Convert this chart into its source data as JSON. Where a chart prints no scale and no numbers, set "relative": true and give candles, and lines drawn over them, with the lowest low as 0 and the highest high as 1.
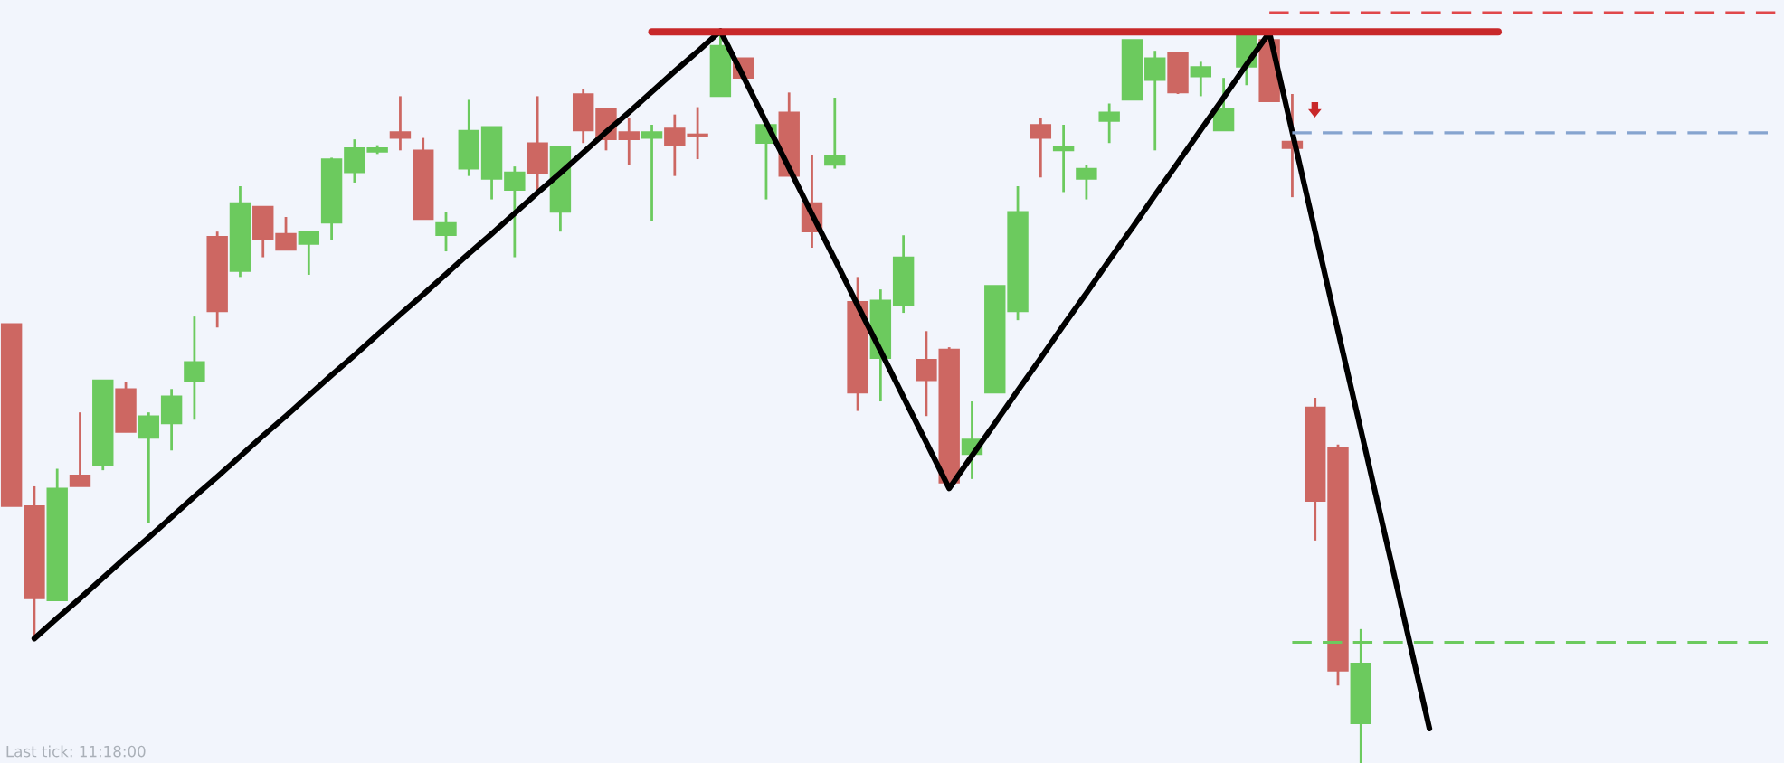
{
  "chart_data": {
    "type": "candlestick",
    "relative": true,
    "categories": [
      null,
      null,
      null,
      null,
      null,
      null,
      null,
      null,
      null,
      null,
      null,
      null,
      null,
      null,
      null,
      null,
      null,
      null,
      null,
      null,
      null,
      null,
      null,
      null,
      null,
      null,
      null,
      null,
      null,
      null,
      null,
      null,
      null,
      null,
      null,
      null,
      null,
      null,
      null,
      null,
      null,
      null,
      null,
      null,
      null,
      null,
      null,
      null,
      null,
      null,
      null,
      null,
      null,
      null,
      null,
      null,
      null,
      null,
      null,
      null,
      null,
      null,
      null,
      null,
      null,
      null,
      null,
      null,
      null,
      null,
      null,
      null,
      null,
      null,
      null,
      null,
      null,
      null
    ],
    "ohlc": [
      [
        0.6,
        0.6,
        0.351,
        0.351
      ],
      [
        0.351,
        0.378,
        0.173,
        0.225
      ],
      [
        0.222,
        0.402,
        0.222,
        0.375
      ],
      [
        0.393,
        0.479,
        0.378,
        0.378
      ],
      [
        0.407,
        0.523,
        0.4,
        0.523
      ],
      [
        0.511,
        0.521,
        0.452,
        0.452
      ],
      [
        0.444,
        0.479,
        0.328,
        0.474
      ],
      [
        0.464,
        0.511,
        0.427,
        0.501
      ],
      [
        0.521,
        0.61,
        0.469,
        0.548
      ],
      [
        0.719,
        0.726,
        0.595,
        0.617
      ],
      [
        0.672,
        0.788,
        0.664,
        0.765
      ],
      [
        0.76,
        0.76,
        0.691,
        0.716
      ],
      [
        0.723,
        0.746,
        0.701,
        0.701
      ],
      [
        0.709,
        0.726,
        0.667,
        0.726
      ],
      [
        0.738,
        0.827,
        0.714,
        0.825
      ],
      [
        0.807,
        0.852,
        0.793,
        0.84
      ],
      [
        0.835,
        0.844,
        0.832,
        0.84
      ],
      [
        0.862,
        0.911,
        0.837,
        0.854
      ],
      [
        0.837,
        0.854,
        0.743,
        0.743
      ],
      [
        0.721,
        0.753,
        0.699,
        0.738
      ],
      [
        0.812,
        0.906,
        0.802,
        0.864
      ],
      [
        0.798,
        0.869,
        0.77,
        0.869
      ],
      [
        0.783,
        0.815,
        0.691,
        0.807
      ],
      [
        0.847,
        0.911,
        0.783,
        0.805
      ],
      [
        0.753,
        0.842,
        0.726,
        0.842
      ],
      [
        0.914,
        0.921,
        0.847,
        0.864
      ],
      [
        0.894,
        0.894,
        0.837,
        0.852
      ],
      [
        0.862,
        0.881,
        0.817,
        0.852
      ],
      [
        0.854,
        0.872,
        0.741,
        0.862
      ],
      [
        0.867,
        0.886,
        0.802,
        0.844
      ],
      [
        0.859,
        0.896,
        0.825,
        0.857
      ],
      [
        0.911,
        0.995,
        0.911,
        0.98
      ],
      [
        0.963,
        0.963,
        0.936,
        0.936
      ],
      [
        0.847,
        0.872,
        0.77,
        0.872
      ],
      [
        0.889,
        0.916,
        0.802,
        0.802
      ],
      [
        0.765,
        0.83,
        0.704,
        0.726
      ],
      [
        0.817,
        0.909,
        0.812,
        0.83
      ],
      [
        0.63,
        0.664,
        0.481,
        0.506
      ],
      [
        0.553,
        0.647,
        0.494,
        0.632
      ],
      [
        0.625,
        0.721,
        0.615,
        0.691
      ],
      [
        0.551,
        0.59,
        0.474,
        0.523
      ],
      [
        0.565,
        0.568,
        0.383,
        0.383
      ],
      [
        0.422,
        0.494,
        0.388,
        0.442
      ],
      [
        0.506,
        0.652,
        0.506,
        0.652
      ],
      [
        0.617,
        0.788,
        0.605,
        0.753
      ],
      [
        0.872,
        0.881,
        0.8,
        0.854
      ],
      [
        0.837,
        0.872,
        0.78,
        0.842
      ],
      [
        0.798,
        0.817,
        0.77,
        0.812
      ],
      [
        0.877,
        0.901,
        0.847,
        0.889
      ],
      [
        0.906,
        0.988,
        0.906,
        0.988
      ],
      [
        0.933,
        0.973,
        0.837,
        0.963
      ],
      [
        0.97,
        0.97,
        0.914,
        0.916
      ],
      [
        0.938,
        0.958,
        0.911,
        0.951
      ],
      [
        0.864,
        0.936,
        0.864,
        0.894
      ],
      [
        0.951,
        1.0,
        0.926,
        0.995
      ],
      [
        0.988,
        0.993,
        0.904,
        0.904
      ],
      [
        0.849,
        0.914,
        0.773,
        0.84
      ],
      [
        0.486,
        0.499,
        0.304,
        0.358
      ],
      [
        0.43,
        0.435,
        0.106,
        0.126
      ],
      [
        0.054,
        0.183,
        0.0,
        0.136
      ],
      null,
      null,
      null,
      null,
      null,
      null,
      null,
      null,
      null,
      null,
      null,
      null,
      null,
      null,
      null,
      null,
      null,
      null
    ],
    "colors": [
      "#cd6762",
      "#cd6762",
      "#6cca5e",
      "#cd6762",
      "#6cca5e",
      "#cd6762",
      "#6cca5e",
      "#6cca5e",
      "#6cca5e",
      "#cd6762",
      "#6cca5e",
      "#cd6762",
      "#cd6762",
      "#6cca5e",
      "#6cca5e",
      "#6cca5e",
      "#6cca5e",
      "#cd6762",
      "#cd6762",
      "#6cca5e",
      "#6cca5e",
      "#6cca5e",
      "#6cca5e",
      "#cd6762",
      "#6cca5e",
      "#cd6762",
      "#cd6762",
      "#cd6762",
      "#6cca5e",
      "#cd6762",
      "#cd6762",
      "#6cca5e",
      "#cd6762",
      "#6cca5e",
      "#cd6762",
      "#cd6762",
      "#6cca5e",
      "#cd6762",
      "#6cca5e",
      "#6cca5e",
      "#cd6762",
      "#cd6762",
      "#6cca5e",
      "#6cca5e",
      "#6cca5e",
      "#cd6762",
      "#6cca5e",
      "#6cca5e",
      "#6cca5e",
      "#6cca5e",
      "#6cca5e",
      "#cd6762",
      "#6cca5e",
      "#6cca5e",
      "#6cca5e",
      "#cd6762",
      "#cd6762",
      "#cd6762",
      "#cd6762",
      "#6cca5e",
      null,
      null,
      null,
      null,
      null,
      null,
      null,
      null,
      null,
      null,
      null,
      null,
      null,
      null,
      null,
      null,
      null,
      null
    ],
    "series": [
      {
        "type": "line",
        "color": "#000000",
        "line_style": "solid",
        "values": [
          null,
          0.17,
          0.198,
          0.225,
          0.253,
          0.281,
          0.308,
          0.336,
          0.364,
          0.391,
          0.419,
          0.447,
          0.474,
          0.502,
          0.53,
          0.557,
          0.585,
          0.613,
          0.64,
          0.668,
          0.696,
          0.723,
          0.751,
          0.779,
          0.806,
          0.834,
          0.862,
          0.889,
          0.917,
          0.945,
          0.972,
          1.0,
          0.938,
          0.875,
          0.813,
          0.75,
          0.688,
          0.625,
          0.563,
          0.5,
          0.438,
          0.375,
          0.42,
          0.464,
          0.509,
          0.553,
          0.598,
          0.642,
          0.687,
          0.731,
          0.776,
          0.82,
          0.865,
          0.909,
          0.954,
          0.998,
          0.862,
          0.726,
          0.59,
          0.455,
          0.319,
          0.183,
          0.047,
          null,
          null,
          null,
          null,
          null,
          null,
          null,
          null,
          null,
          null,
          null,
          null,
          null,
          null,
          null
        ]
      },
      {
        "type": "line",
        "color": "#c8282a",
        "line_style": "solid",
        "values": [
          null,
          null,
          null,
          null,
          null,
          null,
          null,
          null,
          null,
          null,
          null,
          null,
          null,
          null,
          null,
          null,
          null,
          null,
          null,
          null,
          null,
          null,
          null,
          null,
          null,
          null,
          null,
          null,
          0.999,
          0.999,
          0.999,
          0.999,
          0.999,
          0.999,
          0.999,
          0.999,
          0.999,
          0.999,
          0.999,
          0.999,
          0.999,
          0.999,
          0.999,
          0.999,
          0.999,
          0.999,
          0.999,
          0.999,
          0.999,
          0.999,
          0.999,
          0.999,
          0.999,
          0.999,
          0.999,
          0.999,
          0.999,
          0.999,
          0.999,
          0.999,
          0.999,
          0.999,
          0.999,
          0.999,
          0.999,
          0.999,
          null,
          null,
          null,
          null,
          null,
          null,
          null,
          null,
          null,
          null,
          null,
          null
        ]
      },
      {
        "type": "line",
        "color": "#86a4cf",
        "line_style": "dashed",
        "values": [
          null,
          null,
          null,
          null,
          null,
          null,
          null,
          null,
          null,
          null,
          null,
          null,
          null,
          null,
          null,
          null,
          null,
          null,
          null,
          null,
          null,
          null,
          null,
          null,
          null,
          null,
          null,
          null,
          null,
          null,
          null,
          null,
          null,
          null,
          null,
          null,
          null,
          null,
          null,
          null,
          null,
          null,
          null,
          null,
          null,
          null,
          null,
          null,
          null,
          null,
          null,
          null,
          null,
          null,
          null,
          null,
          0.861,
          0.861,
          0.861,
          0.861,
          0.861,
          0.861,
          0.861,
          0.861,
          0.861,
          0.861,
          0.861,
          0.861,
          0.861,
          0.861,
          0.861,
          0.861,
          0.861,
          0.861,
          0.861,
          0.861,
          0.861,
          0.861
        ]
      },
      {
        "type": "line",
        "color": "#6cca5e",
        "line_style": "dashed",
        "values": [
          null,
          null,
          null,
          null,
          null,
          null,
          null,
          null,
          null,
          null,
          null,
          null,
          null,
          null,
          null,
          null,
          null,
          null,
          null,
          null,
          null,
          null,
          null,
          null,
          null,
          null,
          null,
          null,
          null,
          null,
          null,
          null,
          null,
          null,
          null,
          null,
          null,
          null,
          null,
          null,
          null,
          null,
          null,
          null,
          null,
          null,
          null,
          null,
          null,
          null,
          null,
          null,
          null,
          null,
          null,
          null,
          0.165,
          0.165,
          0.165,
          0.165,
          0.165,
          0.165,
          0.165,
          0.165,
          0.165,
          0.165,
          0.165,
          0.165,
          0.165,
          0.165,
          0.165,
          0.165,
          0.165,
          0.165,
          0.165,
          0.165,
          0.165,
          0.165
        ]
      }
    ],
    "ref_lines": [
      {
        "axis": "y",
        "value": 1.025,
        "color": "#e0474a",
        "line_style": "dashed"
      }
    ],
    "annotations": [
      "Last tick: 11:18:00"
    ]
  }
}
